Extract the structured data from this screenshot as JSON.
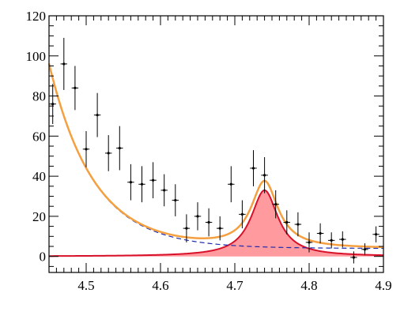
{
  "chart_data": {
    "type": "scatter",
    "title": "",
    "xlabel": "",
    "ylabel": "",
    "xlim": [
      4.45,
      4.9
    ],
    "ylim": [
      -8,
      120
    ],
    "grid": false,
    "x_ticks": [
      {
        "value": 4.5,
        "label": "4.5"
      },
      {
        "value": 4.6,
        "label": "4.6"
      },
      {
        "value": 4.7,
        "label": "4.7"
      },
      {
        "value": 4.8,
        "label": "4.8"
      },
      {
        "value": 4.9,
        "label": "4.9"
      }
    ],
    "y_ticks": [
      {
        "value": 0,
        "label": "0"
      },
      {
        "value": 20,
        "label": "20"
      },
      {
        "value": 40,
        "label": "40"
      },
      {
        "value": 60,
        "label": "60"
      },
      {
        "value": 80,
        "label": "80"
      },
      {
        "value": 100,
        "label": "100"
      },
      {
        "value": 120,
        "label": "120"
      }
    ],
    "data_points": {
      "x_error": 0.0045,
      "points": [
        {
          "x": 4.455,
          "y": 76,
          "err": 10
        },
        {
          "x": 4.47,
          "y": 96,
          "err": 13
        },
        {
          "x": 4.485,
          "y": 84,
          "err": 11
        },
        {
          "x": 4.5,
          "y": 53.5,
          "err": 9
        },
        {
          "x": 4.515,
          "y": 70.5,
          "err": 11
        },
        {
          "x": 4.53,
          "y": 51.5,
          "err": 9
        },
        {
          "x": 4.545,
          "y": 54,
          "err": 11
        },
        {
          "x": 4.56,
          "y": 37,
          "err": 9
        },
        {
          "x": 4.575,
          "y": 36,
          "err": 9
        },
        {
          "x": 4.59,
          "y": 38,
          "err": 9
        },
        {
          "x": 4.605,
          "y": 33,
          "err": 8
        },
        {
          "x": 4.62,
          "y": 28,
          "err": 8
        },
        {
          "x": 4.635,
          "y": 14,
          "err": 7
        },
        {
          "x": 4.65,
          "y": 20,
          "err": 7
        },
        {
          "x": 4.665,
          "y": 17,
          "err": 7
        },
        {
          "x": 4.68,
          "y": 14,
          "err": 6
        },
        {
          "x": 4.695,
          "y": 36,
          "err": 9
        },
        {
          "x": 4.71,
          "y": 21,
          "err": 7
        },
        {
          "x": 4.725,
          "y": 44,
          "err": 9
        },
        {
          "x": 4.74,
          "y": 40.5,
          "err": 9
        },
        {
          "x": 4.755,
          "y": 26,
          "err": 7
        },
        {
          "x": 4.77,
          "y": 17,
          "err": 6
        },
        {
          "x": 4.785,
          "y": 16,
          "err": 6
        },
        {
          "x": 4.8,
          "y": 7,
          "err": 5
        },
        {
          "x": 4.815,
          "y": 11.5,
          "err": 5
        },
        {
          "x": 4.83,
          "y": 8,
          "err": 4
        },
        {
          "x": 4.845,
          "y": 8.5,
          "err": 4
        },
        {
          "x": 4.86,
          "y": -0.5,
          "err": 3
        },
        {
          "x": 4.875,
          "y": 3.5,
          "err": 3
        },
        {
          "x": 4.89,
          "y": 11,
          "err": 4
        }
      ]
    },
    "curves": {
      "total_fit": {
        "style": "solid",
        "color": "#f5a040"
      },
      "background_fit": {
        "style": "dashed",
        "color": "#1a2bb0"
      },
      "signal_fit": {
        "style": "solid",
        "color": "#d8102a",
        "fill": "#ff9a9e"
      }
    },
    "model": {
      "background": {
        "amplitude": 92,
        "x0": 4.45,
        "decay": 16.76,
        "floor": 4
      },
      "signal": {
        "peak": 33,
        "mass": 4.74,
        "width": 0.022
      }
    }
  }
}
